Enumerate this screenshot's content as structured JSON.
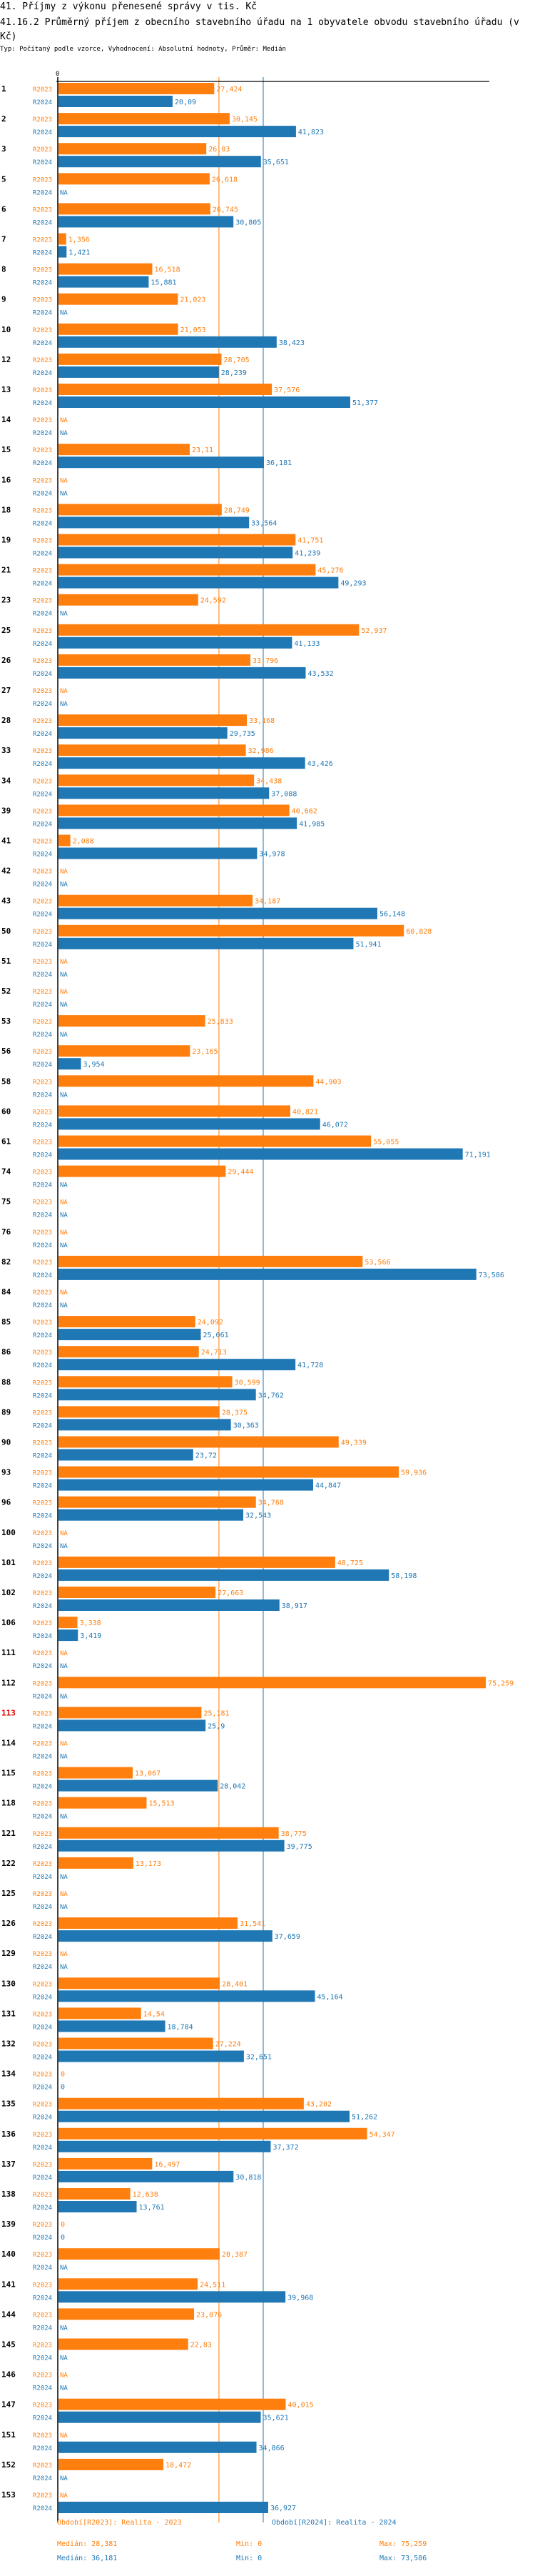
{
  "header": {
    "title": "41. Příjmy z výkonu přenesené správy v tis. Kč",
    "subtitle": "41.16.2 Průměrný příjem z obecního stavebního úřadu na 1 obyvatele obvodu stavebního úřadu (v Kč)",
    "meta": "Typ: Počítaný podle vzorce, Vyhodnocení: Absolutní hodnoty, Průměr: Medián"
  },
  "colors": {
    "r2023": "#ff7f0e",
    "r2024": "#1f77b4",
    "highlight": "#e00000"
  },
  "legend": {
    "r2023_label": "Období[R2023]: Realita - 2023",
    "r2024_label": "Období[R2024]: Realita - 2024",
    "r2023_median": "Medián: 28,381",
    "r2023_min": "Min: 0",
    "r2023_max": "Max: 75,259",
    "r2024_median": "Medián: 36,181",
    "r2024_min": "Min: 0",
    "r2024_max": "Max: 73,586"
  },
  "chart_data": {
    "type": "bar",
    "orientation": "horizontal",
    "title": "41.16.2 Průměrný příjem z obecního stavebního úřadu na 1 obyvatele obvodu stavebního úřadu (v Kč)",
    "xlabel": "",
    "ylabel": "",
    "xlim": [
      0,
      82
    ],
    "axis_zero_label": "0",
    "grid": false,
    "decimal_separator": ",",
    "series_labels": [
      "R2023",
      "R2024"
    ],
    "medians": {
      "R2023": 28.381,
      "R2024": 36.181
    },
    "highlighted_category": "113",
    "categories": [
      "1",
      "2",
      "3",
      "5",
      "6",
      "7",
      "8",
      "9",
      "10",
      "12",
      "13",
      "14",
      "15",
      "16",
      "18",
      "19",
      "21",
      "23",
      "25",
      "26",
      "27",
      "28",
      "33",
      "34",
      "39",
      "41",
      "42",
      "43",
      "50",
      "51",
      "52",
      "53",
      "56",
      "58",
      "60",
      "61",
      "74",
      "75",
      "76",
      "82",
      "84",
      "85",
      "86",
      "88",
      "89",
      "90",
      "93",
      "96",
      "100",
      "101",
      "102",
      "106",
      "111",
      "112",
      "113",
      "114",
      "115",
      "118",
      "121",
      "122",
      "125",
      "126",
      "129",
      "130",
      "131",
      "132",
      "134",
      "135",
      "136",
      "137",
      "138",
      "139",
      "140",
      "141",
      "144",
      "145",
      "146",
      "147",
      "151",
      "152",
      "153"
    ],
    "series": [
      {
        "name": "R2023",
        "values": [
          27.424,
          30.145,
          26.03,
          26.618,
          26.745,
          1.356,
          16.518,
          21.023,
          21.053,
          28.705,
          37.576,
          null,
          23.11,
          null,
          28.749,
          41.751,
          45.276,
          24.592,
          52.937,
          33.796,
          null,
          33.168,
          32.986,
          34.438,
          40.662,
          2.088,
          null,
          34.187,
          60.828,
          null,
          null,
          25.833,
          23.165,
          44.903,
          40.821,
          55.055,
          29.444,
          null,
          null,
          53.566,
          null,
          24.092,
          24.713,
          30.599,
          28.375,
          49.339,
          59.936,
          34.768,
          null,
          48.725,
          27.663,
          3.338,
          null,
          75.259,
          25.181,
          null,
          13.067,
          15.513,
          38.775,
          13.173,
          null,
          31.541,
          null,
          28.401,
          14.54,
          27.224,
          0,
          43.202,
          54.347,
          16.497,
          12.638,
          0,
          28.387,
          24.511,
          23.876,
          22.83,
          null,
          40.015,
          null,
          18.472,
          null
        ]
      },
      {
        "name": "R2024",
        "values": [
          20.09,
          41.823,
          35.651,
          null,
          30.805,
          1.421,
          15.881,
          null,
          38.423,
          28.239,
          51.377,
          null,
          36.181,
          null,
          33.564,
          41.239,
          49.293,
          null,
          41.133,
          43.532,
          null,
          29.735,
          43.426,
          37.088,
          41.985,
          34.978,
          null,
          56.148,
          51.941,
          null,
          null,
          null,
          3.954,
          null,
          46.072,
          71.191,
          null,
          null,
          null,
          73.586,
          null,
          25.061,
          41.728,
          34.762,
          30.363,
          23.72,
          44.847,
          32.543,
          null,
          58.198,
          38.917,
          3.419,
          null,
          null,
          25.9,
          null,
          28.042,
          null,
          39.775,
          null,
          null,
          37.659,
          null,
          45.164,
          18.784,
          32.651,
          0,
          51.262,
          37.372,
          30.818,
          13.761,
          0,
          null,
          39.968,
          null,
          null,
          null,
          35.621,
          34.866,
          null,
          36.927
        ]
      }
    ]
  }
}
